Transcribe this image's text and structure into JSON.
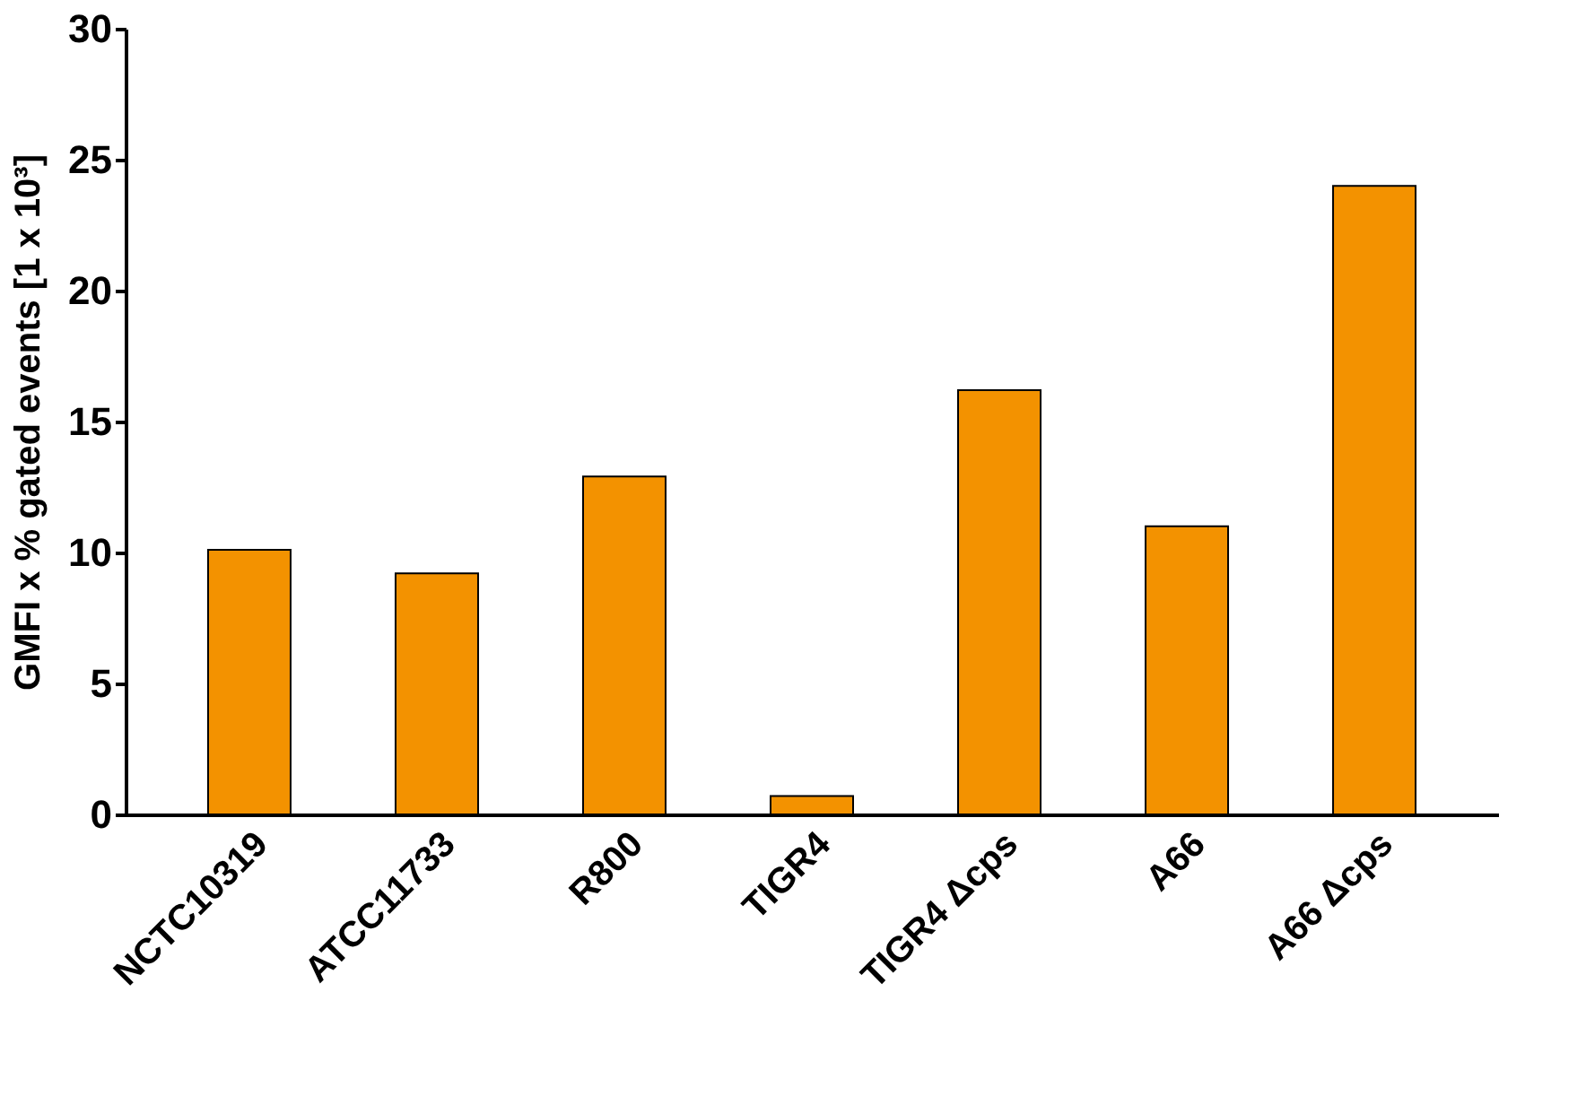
{
  "chart_data": {
    "type": "bar",
    "ylabel": "GMFI x % gated events [1 x 10³]",
    "categories": [
      "NCTC10319",
      "ATCC11733",
      "R800",
      "TIGR4",
      "TIGR4 Δcps",
      "A66",
      "A66 Δcps"
    ],
    "values": [
      10.1,
      9.2,
      12.9,
      0.7,
      16.2,
      11.0,
      24.0
    ],
    "color": "#f39200",
    "ylim": [
      0,
      30
    ],
    "yticks": [
      0,
      5,
      10,
      15,
      20,
      25,
      30
    ],
    "grid": false
  }
}
